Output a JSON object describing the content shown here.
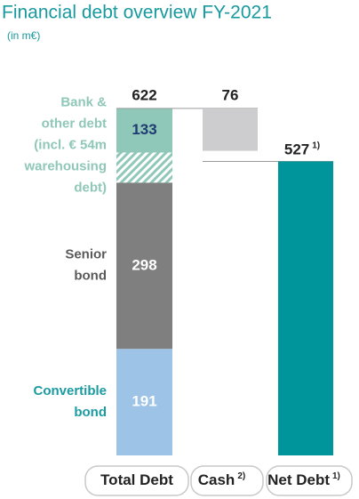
{
  "chart_data": {
    "type": "waterfall",
    "title": "Financial debt overview FY-2021",
    "subtitle": "(in m€)",
    "ylim": [
      0,
      700
    ],
    "bars": [
      {
        "category": "Total Debt",
        "total": 622,
        "segments": [
          {
            "name": [
              "Convertible",
              "bond"
            ],
            "value": 191,
            "color": "#9dc3e6",
            "label_color": "#1a9ba1",
            "value_color": "#ffffff"
          },
          {
            "name": [
              "Senior",
              "bond"
            ],
            "value": 298,
            "color": "#7f7f7f",
            "label_color": "#595959",
            "value_color": "#ffffff"
          },
          {
            "name": [
              "Bank &",
              "other debt",
              "(incl. € 54m",
              "warehousing",
              "debt)"
            ],
            "value": 133,
            "hatched_value": 54,
            "color": "#8fc7b8",
            "label_color": "#8fc7b8",
            "value_color": "#1f3b70"
          }
        ]
      },
      {
        "category": "Cash",
        "footnote": "2)",
        "value": 76,
        "color": "#cdcdcf"
      },
      {
        "category": "Net Debt",
        "footnote": "1)",
        "value": 527,
        "color": "#00959a"
      }
    ]
  }
}
